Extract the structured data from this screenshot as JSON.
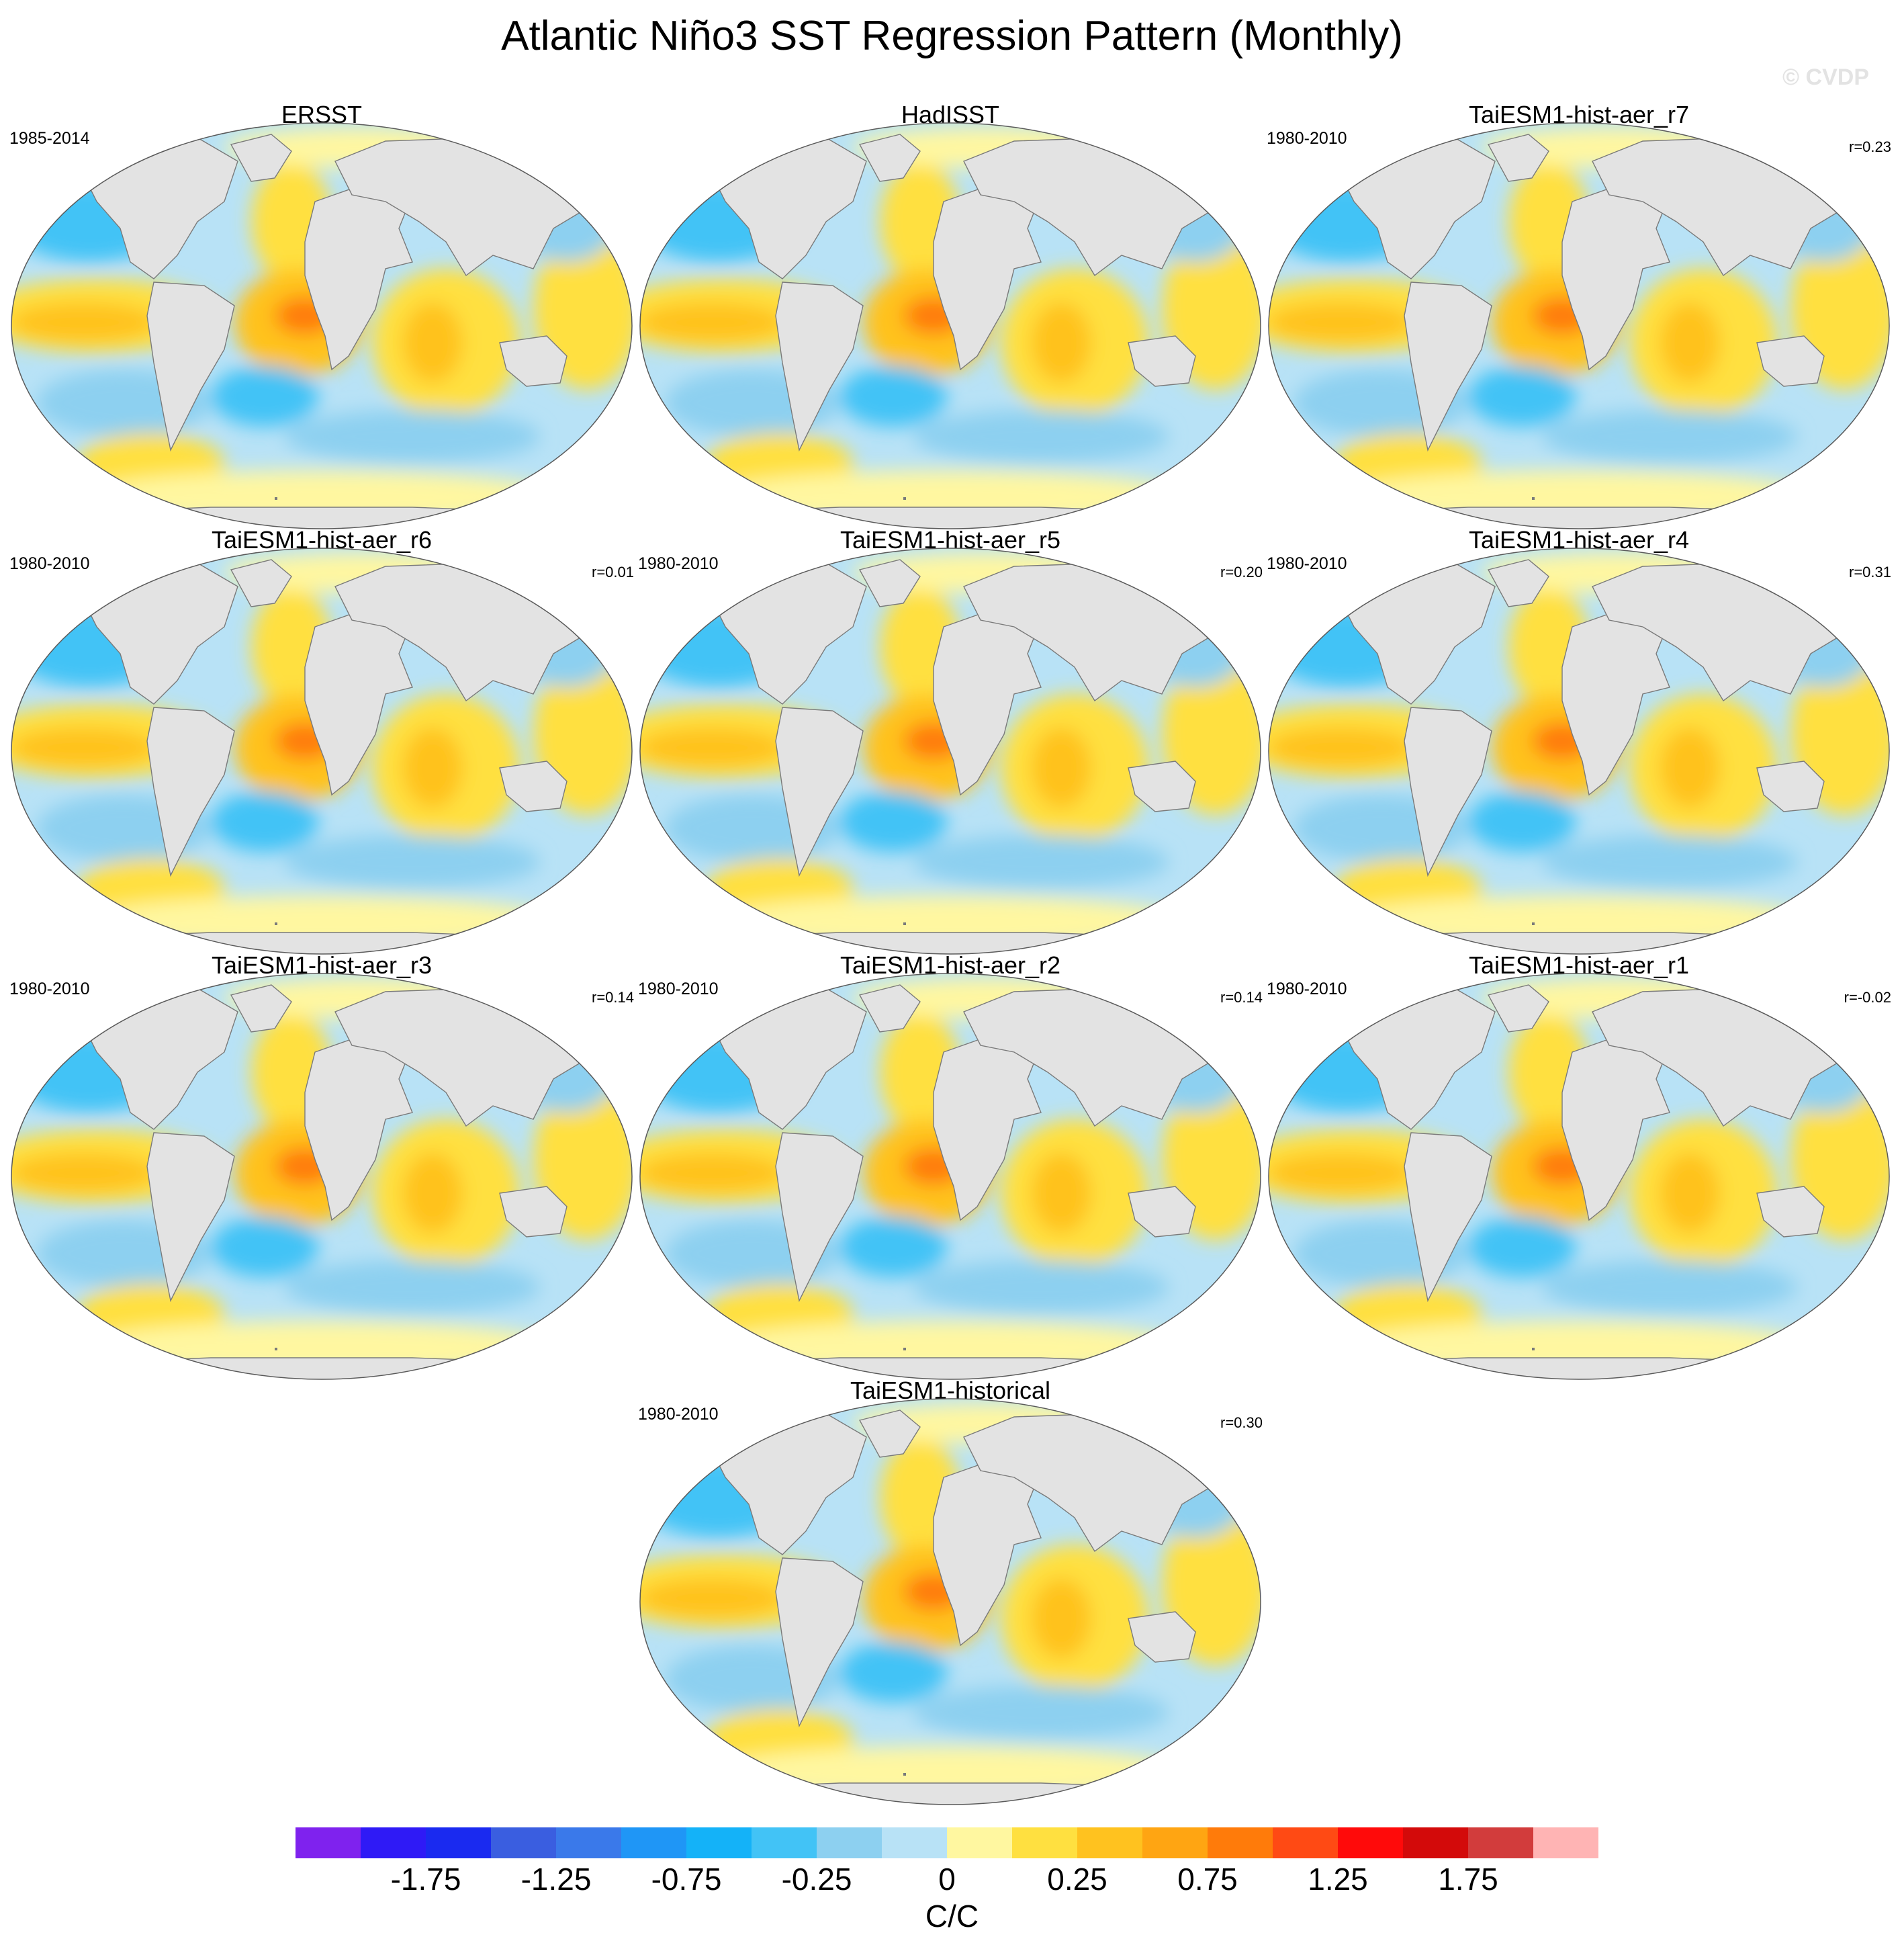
{
  "title": "Atlantic Niño3 SST Regression Pattern (Monthly)",
  "watermark": "© CVDP",
  "panels": [
    {
      "title": "ERSST",
      "period": "1985-2014",
      "corr": ""
    },
    {
      "title": "HadISST",
      "period": "",
      "corr": ""
    },
    {
      "title": "TaiESM1-hist-aer_r7",
      "period": "1980-2010",
      "corr": "r=0.23"
    },
    {
      "title": "TaiESM1-hist-aer_r6",
      "period": "1980-2010",
      "corr": "r=0.01"
    },
    {
      "title": "TaiESM1-hist-aer_r5",
      "period": "1980-2010",
      "corr": "r=0.20"
    },
    {
      "title": "TaiESM1-hist-aer_r4",
      "period": "1980-2010",
      "corr": "r=0.31"
    },
    {
      "title": "TaiESM1-hist-aer_r3",
      "period": "1980-2010",
      "corr": "r=0.14"
    },
    {
      "title": "TaiESM1-hist-aer_r2",
      "period": "1980-2010",
      "corr": "r=0.14"
    },
    {
      "title": "TaiESM1-hist-aer_r1",
      "period": "1980-2010",
      "corr": "r=-0.02"
    },
    {
      "title": "TaiESM1-historical",
      "period": "1980-2010",
      "corr": "r=0.30"
    }
  ],
  "colorbar": {
    "units": "C/C",
    "colors": [
      "#7f22ee",
      "#2f1af6",
      "#1a2af0",
      "#3a5ee0",
      "#3a79ea",
      "#1f96f6",
      "#14b2f8",
      "#42c3f6",
      "#8dd0f0",
      "#b8e2f6",
      "#fff7a0",
      "#ffe040",
      "#ffc21f",
      "#ffa512",
      "#ff7b0a",
      "#ff4a14",
      "#ff0a0a",
      "#d30a0a",
      "#d23c3c",
      "#ffb4b4"
    ],
    "tick_labels": [
      "-1.75",
      "-1.25",
      "-0.75",
      "-0.25",
      "0",
      "0.25",
      "0.75",
      "1.25",
      "1.75"
    ]
  }
}
